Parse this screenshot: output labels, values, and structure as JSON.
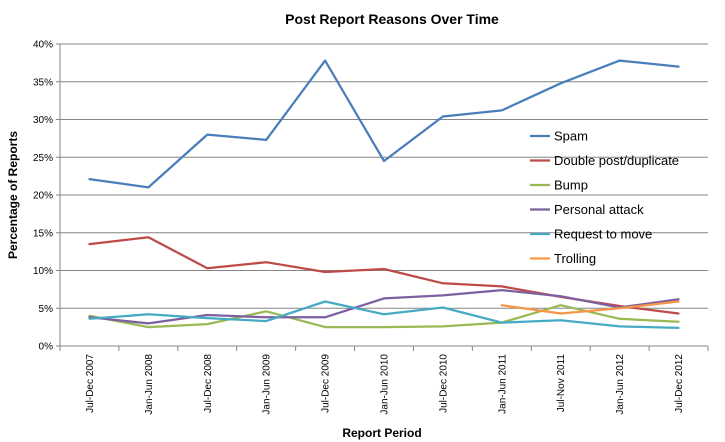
{
  "chart_data": {
    "type": "line",
    "title": "Post Report Reasons Over Time",
    "xlabel": "Report Period",
    "ylabel": "Percentage of Reports",
    "ylim": [
      0,
      40
    ],
    "y_ticks": [
      "0%",
      "5%",
      "10%",
      "15%",
      "20%",
      "25%",
      "30%",
      "35%",
      "40%"
    ],
    "grid": "horizontal",
    "legend_position": "right",
    "categories": [
      "Jul-Dec 2007",
      "Jan-Jun 2008",
      "Jul-Dec 2008",
      "Jan-Jun 2009",
      "Jul-Dec 2009",
      "Jan-Jun 2010",
      "Jul-Dec 2010",
      "Jan-Jun 2011",
      "Jul-Nov 2011",
      "Jan-Jun 2012",
      "Jul-Dec 2012"
    ],
    "series": [
      {
        "name": "Spam",
        "color": "#4a7ebb",
        "values": [
          22.1,
          21.0,
          28.0,
          27.3,
          37.8,
          24.5,
          30.4,
          31.2,
          34.8,
          37.8,
          37.0
        ]
      },
      {
        "name": "Double post/duplicate",
        "color": "#be4b48",
        "values": [
          13.5,
          14.4,
          10.3,
          11.1,
          9.8,
          10.2,
          8.3,
          7.9,
          6.5,
          5.3,
          4.3
        ]
      },
      {
        "name": "Bump",
        "color": "#98b954",
        "values": [
          4.0,
          2.5,
          2.9,
          4.6,
          2.5,
          2.5,
          2.6,
          3.1,
          5.4,
          3.6,
          3.2
        ]
      },
      {
        "name": "Personal attack",
        "color": "#7d60a0",
        "values": [
          3.8,
          3.0,
          4.1,
          3.8,
          3.8,
          6.3,
          6.7,
          7.4,
          6.6,
          5.1,
          6.2
        ]
      },
      {
        "name": "Request to move",
        "color": "#46aac5",
        "values": [
          3.6,
          4.2,
          3.7,
          3.3,
          5.9,
          4.2,
          5.1,
          3.1,
          3.4,
          2.6,
          2.4
        ]
      },
      {
        "name": "Trolling",
        "color": "#f79646",
        "values": [
          null,
          null,
          null,
          null,
          null,
          null,
          null,
          5.4,
          4.3,
          5.0,
          5.9
        ]
      }
    ]
  }
}
